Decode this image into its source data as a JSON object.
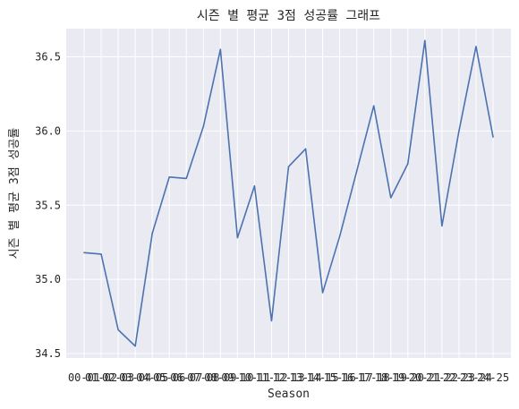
{
  "chart_data": {
    "type": "line",
    "title": "시즌 별 평균 3점 성공률 그래프",
    "xlabel": "Season",
    "ylabel": "시즌 별 평균 3점 성공률",
    "categories": [
      "00-01",
      "01-02",
      "02-03",
      "03-04",
      "04-05",
      "05-06",
      "06-07",
      "07-08",
      "08-09",
      "09-10",
      "10-11",
      "11-12",
      "12-13",
      "13-14",
      "14-15",
      "15-16",
      "16-17",
      "17-18",
      "18-19",
      "19-20",
      "20-21",
      "21-22",
      "22-23",
      "23-24",
      "24-25"
    ],
    "series": [
      {
        "values": [
          35.18,
          35.17,
          34.66,
          34.55,
          35.31,
          35.69,
          35.68,
          36.03,
          36.55,
          35.28,
          35.63,
          34.72,
          35.76,
          35.88,
          34.91,
          35.29,
          35.73,
          36.17,
          35.55,
          35.78,
          36.61,
          35.36,
          36.0,
          36.57,
          35.96
        ],
        "color": "#4c72b0"
      }
    ],
    "ylim": [
      34.47,
      36.69
    ],
    "yticks": [
      "34.5",
      "35.0",
      "35.5",
      "36.0",
      "36.5"
    ],
    "grid": true,
    "background": "#eaeaf2"
  }
}
